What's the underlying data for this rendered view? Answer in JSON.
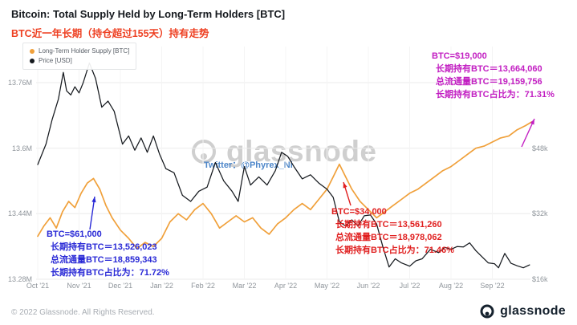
{
  "header": {
    "title": "Bitcoin: Total Supply Held by Long-Term Holders [BTC]",
    "subtitle": "BTC近一年长期（持仓超过155天）持有走势"
  },
  "legend": {
    "items": [
      {
        "label": "Long-Term Holder Supply [BTC]",
        "color": "#f0a03a"
      },
      {
        "label": "Price [USD]",
        "color": "#15191e"
      }
    ]
  },
  "watermark": {
    "text": "glassnode"
  },
  "twitter_note": "Twitter：@Phyrex_Ni",
  "annotations": {
    "sep": {
      "color": "#c21ec2",
      "lines": [
        "BTC=$19,000",
        "长期持有BTC＝13,664,060",
        "总流通量BTC＝19,159,756",
        "长期持有BTC占比为：71.31%"
      ]
    },
    "may": {
      "color": "#e01e1e",
      "lines": [
        "BTC=$34,000",
        "长期持有BTC＝13,561,260",
        "总流通量BTC＝18,978,062",
        "长期持有BTC占比为：71.46%"
      ]
    },
    "nov": {
      "color": "#2929d6",
      "lines": [
        "BTC=$61,000",
        "长期持有BTC＝13,526,023",
        "总流通量BTC＝18,859,343",
        "长期持有BTC占比为：71.72%"
      ]
    }
  },
  "footer": {
    "copyright": "© 2022 Glassnode. All Rights Reserved.",
    "brand": "glassnode"
  },
  "chart_data": {
    "type": "line",
    "title": "Bitcoin: Total Supply Held by Long-Term Holders [BTC]",
    "x_unit": "months since Oct 2021",
    "x_ticks": [
      "Oct '21",
      "Nov '21",
      "Dec '21",
      "Jan '22",
      "Feb '22",
      "Mar '22",
      "Apr '22",
      "May '22",
      "Jun '22",
      "Jul '22",
      "Aug '22",
      "Sep '22"
    ],
    "left_axis": {
      "label": "Long-Term Holder Supply [BTC]",
      "ticks": [
        "13.76M",
        "13.6M",
        "13.44M",
        "13.28M"
      ],
      "tick_values": [
        13.76,
        13.6,
        13.44,
        13.28
      ],
      "ylim": [
        13.27,
        13.85
      ],
      "unit": "million BTC"
    },
    "right_axis": {
      "label": "Price [USD]",
      "ticks": [
        "$48k",
        "$32k",
        "$16k"
      ],
      "tick_values": [
        48,
        32,
        16
      ],
      "ylim": [
        16,
        64
      ],
      "unit": "thousand USD"
    },
    "grid": true,
    "legend_position": "top-left",
    "series": [
      {
        "name": "Long-Term Holder Supply [BTC]",
        "color": "#f0a03a",
        "axis": "left",
        "points": [
          [
            0,
            13.385
          ],
          [
            0.15,
            13.41
          ],
          [
            0.3,
            13.43
          ],
          [
            0.45,
            13.405
          ],
          [
            0.6,
            13.445
          ],
          [
            0.75,
            13.47
          ],
          [
            0.9,
            13.455
          ],
          [
            1.05,
            13.49
          ],
          [
            1.2,
            13.515
          ],
          [
            1.35,
            13.526
          ],
          [
            1.5,
            13.5
          ],
          [
            1.65,
            13.46
          ],
          [
            1.8,
            13.43
          ],
          [
            2,
            13.4
          ],
          [
            2.2,
            13.38
          ],
          [
            2.4,
            13.355
          ],
          [
            2.6,
            13.37
          ],
          [
            2.8,
            13.36
          ],
          [
            3,
            13.38
          ],
          [
            3.2,
            13.42
          ],
          [
            3.4,
            13.44
          ],
          [
            3.6,
            13.425
          ],
          [
            3.8,
            13.45
          ],
          [
            4,
            13.465
          ],
          [
            4.2,
            13.44
          ],
          [
            4.4,
            13.405
          ],
          [
            4.6,
            13.42
          ],
          [
            4.8,
            13.435
          ],
          [
            5,
            13.42
          ],
          [
            5.2,
            13.43
          ],
          [
            5.4,
            13.405
          ],
          [
            5.6,
            13.39
          ],
          [
            5.8,
            13.415
          ],
          [
            6,
            13.43
          ],
          [
            6.2,
            13.45
          ],
          [
            6.4,
            13.465
          ],
          [
            6.6,
            13.45
          ],
          [
            6.8,
            13.475
          ],
          [
            7,
            13.5
          ],
          [
            7.15,
            13.53
          ],
          [
            7.3,
            13.561
          ],
          [
            7.45,
            13.53
          ],
          [
            7.6,
            13.5
          ],
          [
            7.8,
            13.47
          ],
          [
            8,
            13.45
          ],
          [
            8.2,
            13.43
          ],
          [
            8.4,
            13.445
          ],
          [
            8.6,
            13.46
          ],
          [
            8.8,
            13.475
          ],
          [
            9,
            13.49
          ],
          [
            9.2,
            13.5
          ],
          [
            9.4,
            13.515
          ],
          [
            9.6,
            13.53
          ],
          [
            9.8,
            13.545
          ],
          [
            10,
            13.555
          ],
          [
            10.2,
            13.57
          ],
          [
            10.4,
            13.585
          ],
          [
            10.6,
            13.6
          ],
          [
            10.8,
            13.605
          ],
          [
            11,
            13.615
          ],
          [
            11.2,
            13.625
          ],
          [
            11.4,
            13.63
          ],
          [
            11.6,
            13.645
          ],
          [
            11.8,
            13.655
          ],
          [
            11.95,
            13.664
          ]
        ]
      },
      {
        "name": "Price [USD]",
        "color": "#15191e",
        "axis": "right",
        "points": [
          [
            0,
            44
          ],
          [
            0.2,
            49
          ],
          [
            0.35,
            55
          ],
          [
            0.5,
            60
          ],
          [
            0.62,
            66.5
          ],
          [
            0.7,
            62
          ],
          [
            0.8,
            61
          ],
          [
            0.9,
            63
          ],
          [
            1,
            61.5
          ],
          [
            1.1,
            64
          ],
          [
            1.25,
            68.8
          ],
          [
            1.4,
            65
          ],
          [
            1.55,
            58
          ],
          [
            1.7,
            59.5
          ],
          [
            1.85,
            57
          ],
          [
            2.05,
            49
          ],
          [
            2.2,
            51
          ],
          [
            2.35,
            47.5
          ],
          [
            2.5,
            50.5
          ],
          [
            2.65,
            47
          ],
          [
            2.8,
            51
          ],
          [
            2.95,
            46.5
          ],
          [
            3.1,
            43
          ],
          [
            3.3,
            42
          ],
          [
            3.5,
            36.5
          ],
          [
            3.7,
            35
          ],
          [
            3.9,
            37.5
          ],
          [
            4.1,
            38.5
          ],
          [
            4.3,
            44.5
          ],
          [
            4.5,
            40
          ],
          [
            4.7,
            37.5
          ],
          [
            4.85,
            35
          ],
          [
            5,
            43.5
          ],
          [
            5.15,
            39
          ],
          [
            5.35,
            41
          ],
          [
            5.55,
            39
          ],
          [
            5.75,
            42.5
          ],
          [
            5.9,
            47
          ],
          [
            6.05,
            46
          ],
          [
            6.2,
            43.5
          ],
          [
            6.4,
            40.5
          ],
          [
            6.6,
            41.5
          ],
          [
            6.8,
            39.5
          ],
          [
            7,
            38
          ],
          [
            7.15,
            36
          ],
          [
            7.3,
            30
          ],
          [
            7.45,
            29
          ],
          [
            7.6,
            30.5
          ],
          [
            7.75,
            29
          ],
          [
            7.9,
            31.5
          ],
          [
            8.05,
            31.7
          ],
          [
            8.2,
            29.5
          ],
          [
            8.35,
            24
          ],
          [
            8.5,
            19
          ],
          [
            8.65,
            21
          ],
          [
            8.8,
            20
          ],
          [
            9,
            19.2
          ],
          [
            9.15,
            20.5
          ],
          [
            9.3,
            21
          ],
          [
            9.5,
            23.3
          ],
          [
            9.7,
            22.5
          ],
          [
            9.85,
            23.8
          ],
          [
            10,
            23.3
          ],
          [
            10.15,
            24
          ],
          [
            10.3,
            23.9
          ],
          [
            10.45,
            24.9
          ],
          [
            10.6,
            23
          ],
          [
            10.75,
            21.5
          ],
          [
            10.9,
            20
          ],
          [
            11.05,
            19.8
          ],
          [
            11.15,
            18.8
          ],
          [
            11.3,
            22.3
          ],
          [
            11.45,
            19.9
          ],
          [
            11.6,
            19.3
          ],
          [
            11.75,
            18.8
          ],
          [
            11.9,
            19.5
          ]
        ]
      }
    ]
  }
}
